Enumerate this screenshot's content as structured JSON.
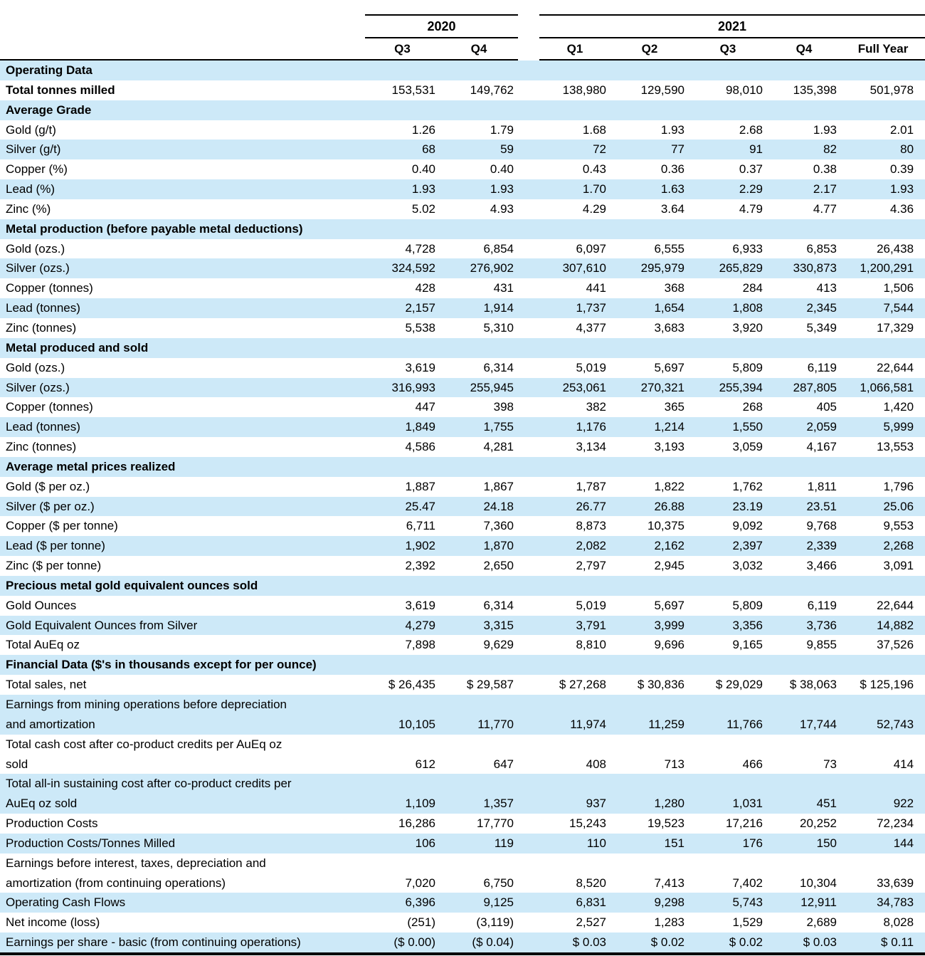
{
  "colors": {
    "row_highlight": "#cde9f8",
    "rule": "#000000"
  },
  "header": {
    "year_groups": [
      {
        "label": "2020",
        "span": 2
      },
      {
        "label": "2021",
        "span": 5
      }
    ],
    "columns": [
      "Q3",
      "Q4",
      "Q1",
      "Q2",
      "Q3",
      "Q4",
      "Full Year"
    ]
  },
  "rows": [
    {
      "type": "section",
      "label": "Operating Data"
    },
    {
      "type": "data",
      "bold": true,
      "label": "Total tonnes milled",
      "values": [
        "153,531",
        "149,762",
        "138,980",
        "129,590",
        "98,010",
        "135,398",
        "501,978"
      ]
    },
    {
      "type": "section",
      "label": "Average Grade"
    },
    {
      "type": "data",
      "label": "Gold (g/t)",
      "values": [
        "1.26",
        "1.79",
        "1.68",
        "1.93",
        "2.68",
        "1.93",
        "2.01"
      ]
    },
    {
      "type": "data",
      "label": "Silver (g/t)",
      "values": [
        "68",
        "59",
        "72",
        "77",
        "91",
        "82",
        "80"
      ]
    },
    {
      "type": "data",
      "label": "Copper (%)",
      "values": [
        "0.40",
        "0.40",
        "0.43",
        "0.36",
        "0.37",
        "0.38",
        "0.39"
      ]
    },
    {
      "type": "data",
      "label": "Lead (%)",
      "values": [
        "1.93",
        "1.93",
        "1.70",
        "1.63",
        "2.29",
        "2.17",
        "1.93"
      ]
    },
    {
      "type": "data",
      "label": "Zinc (%)",
      "values": [
        "5.02",
        "4.93",
        "4.29",
        "3.64",
        "4.79",
        "4.77",
        "4.36"
      ]
    },
    {
      "type": "section",
      "label": "Metal production (before payable metal deductions)"
    },
    {
      "type": "data",
      "label": "Gold (ozs.)",
      "values": [
        "4,728",
        "6,854",
        "6,097",
        "6,555",
        "6,933",
        "6,853",
        "26,438"
      ]
    },
    {
      "type": "data",
      "label": "Silver (ozs.)",
      "values": [
        "324,592",
        "276,902",
        "307,610",
        "295,979",
        "265,829",
        "330,873",
        "1,200,291"
      ]
    },
    {
      "type": "data",
      "label": "Copper (tonnes)",
      "values": [
        "428",
        "431",
        "441",
        "368",
        "284",
        "413",
        "1,506"
      ]
    },
    {
      "type": "data",
      "label": "Lead (tonnes)",
      "values": [
        "2,157",
        "1,914",
        "1,737",
        "1,654",
        "1,808",
        "2,345",
        "7,544"
      ]
    },
    {
      "type": "data",
      "label": "Zinc (tonnes)",
      "values": [
        "5,538",
        "5,310",
        "4,377",
        "3,683",
        "3,920",
        "5,349",
        "17,329"
      ]
    },
    {
      "type": "section",
      "label": "Metal produced and sold"
    },
    {
      "type": "data",
      "label": "Gold (ozs.)",
      "values": [
        "3,619",
        "6,314",
        "5,019",
        "5,697",
        "5,809",
        "6,119",
        "22,644"
      ]
    },
    {
      "type": "data",
      "label": "Silver (ozs.)",
      "values": [
        "316,993",
        "255,945",
        "253,061",
        "270,321",
        "255,394",
        "287,805",
        "1,066,581"
      ]
    },
    {
      "type": "data",
      "label": "Copper (tonnes)",
      "values": [
        "447",
        "398",
        "382",
        "365",
        "268",
        "405",
        "1,420"
      ]
    },
    {
      "type": "data",
      "label": "Lead (tonnes)",
      "values": [
        "1,849",
        "1,755",
        "1,176",
        "1,214",
        "1,550",
        "2,059",
        "5,999"
      ]
    },
    {
      "type": "data",
      "label": "Zinc (tonnes)",
      "values": [
        "4,586",
        "4,281",
        "3,134",
        "3,193",
        "3,059",
        "4,167",
        "13,553"
      ]
    },
    {
      "type": "section",
      "label": "Average metal prices realized"
    },
    {
      "type": "data",
      "label": "Gold ($ per oz.)",
      "values": [
        "1,887",
        "1,867",
        "1,787",
        "1,822",
        "1,762",
        "1,811",
        "1,796"
      ]
    },
    {
      "type": "data",
      "label": "Silver ($ per oz.)",
      "values": [
        "25.47",
        "24.18",
        "26.77",
        "26.88",
        "23.19",
        "23.51",
        "25.06"
      ]
    },
    {
      "type": "data",
      "label": "Copper ($ per tonne)",
      "values": [
        "6,711",
        "7,360",
        "8,873",
        "10,375",
        "9,092",
        "9,768",
        "9,553"
      ]
    },
    {
      "type": "data",
      "label": "Lead ($ per tonne)",
      "values": [
        "1,902",
        "1,870",
        "2,082",
        "2,162",
        "2,397",
        "2,339",
        "2,268"
      ]
    },
    {
      "type": "data",
      "label": "Zinc ($ per tonne)",
      "values": [
        "2,392",
        "2,650",
        "2,797",
        "2,945",
        "3,032",
        "3,466",
        "3,091"
      ]
    },
    {
      "type": "section",
      "label": "Precious metal gold equivalent ounces sold"
    },
    {
      "type": "data",
      "label": "Gold Ounces",
      "values": [
        "3,619",
        "6,314",
        "5,019",
        "5,697",
        "5,809",
        "6,119",
        "22,644"
      ]
    },
    {
      "type": "data",
      "label": "Gold Equivalent Ounces from Silver",
      "values": [
        "4,279",
        "3,315",
        "3,791",
        "3,999",
        "3,356",
        "3,736",
        "14,882"
      ]
    },
    {
      "type": "data",
      "label": "Total AuEq oz",
      "values": [
        "7,898",
        "9,629",
        "8,810",
        "9,696",
        "9,165",
        "9,855",
        "37,526"
      ]
    },
    {
      "type": "section",
      "label": "Financial Data ($'s in thousands except for per ounce)"
    },
    {
      "type": "data",
      "label": "Total sales, net",
      "values": [
        "$ 26,435",
        "$ 29,587",
        "$ 27,268",
        "$ 30,836",
        "$ 29,029",
        "$ 38,063",
        "$ 125,196"
      ]
    },
    {
      "type": "data",
      "label": "Earnings from mining operations before depreciation\nand amortization",
      "values": [
        "10,105",
        "11,770",
        "11,974",
        "11,259",
        "11,766",
        "17,744",
        "52,743"
      ]
    },
    {
      "type": "data",
      "label": "Total cash cost after co-product credits per AuEq oz\nsold",
      "values": [
        "612",
        "647",
        "408",
        "713",
        "466",
        "73",
        "414"
      ]
    },
    {
      "type": "data",
      "label": "Total all-in sustaining cost after co-product credits per\nAuEq oz sold",
      "values": [
        "1,109",
        "1,357",
        "937",
        "1,280",
        "1,031",
        "451",
        "922"
      ]
    },
    {
      "type": "data",
      "label": "Production Costs",
      "values": [
        "16,286",
        "17,770",
        "15,243",
        "19,523",
        "17,216",
        "20,252",
        "72,234"
      ]
    },
    {
      "type": "data",
      "label": "Production Costs/Tonnes Milled",
      "values": [
        "106",
        "119",
        "110",
        "151",
        "176",
        "150",
        "144"
      ]
    },
    {
      "type": "data",
      "label": "Earnings before interest, taxes, depreciation and\namortization (from continuing operations)",
      "values": [
        "7,020",
        "6,750",
        "8,520",
        "7,413",
        "7,402",
        "10,304",
        "33,639"
      ]
    },
    {
      "type": "data",
      "label": "Operating Cash Flows",
      "values": [
        "6,396",
        "9,125",
        "6,831",
        "9,298",
        "5,743",
        "12,911",
        "34,783"
      ]
    },
    {
      "type": "data",
      "label": "Net income (loss)",
      "values": [
        "(251)",
        "(3,119)",
        "2,527",
        "1,283",
        "1,529",
        "2,689",
        "8,028"
      ]
    },
    {
      "type": "data",
      "label": "Earnings per share - basic (from continuing operations)",
      "values": [
        "($ 0.00)",
        "($ 0.04)",
        "$ 0.03",
        "$ 0.02",
        "$ 0.02",
        "$ 0.03",
        "$ 0.11"
      ]
    }
  ]
}
